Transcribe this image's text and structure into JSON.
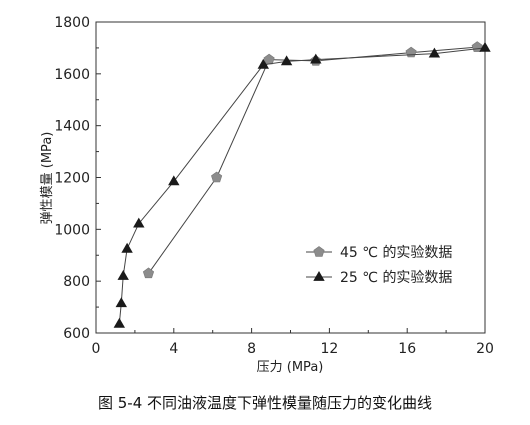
{
  "chart_data": {
    "type": "line",
    "xlabel": "压力 (MPa)",
    "ylabel": "弹性模量 (MPa)",
    "xlim": [
      0,
      20
    ],
    "ylim": [
      600,
      1800
    ],
    "x_ticks": [
      "0",
      "4",
      "8",
      "12",
      "16",
      "20"
    ],
    "y_ticks": [
      "600",
      "800",
      "1000",
      "1200",
      "1400",
      "1600",
      "1800"
    ],
    "grid": false,
    "legend_position": "lower-right",
    "series": [
      {
        "name": "45 ℃ 的实验数据",
        "marker": "pentagon",
        "color": "#8c8c8c",
        "points": [
          [
            2.7,
            830
          ],
          [
            6.2,
            1200
          ],
          [
            8.9,
            1655
          ],
          [
            11.3,
            1650
          ],
          [
            16.2,
            1682
          ],
          [
            19.6,
            1703
          ]
        ]
      },
      {
        "name": "25 ℃ 的实验数据",
        "marker": "triangle",
        "color": "#1a1a1a",
        "points": [
          [
            1.2,
            635
          ],
          [
            1.3,
            715
          ],
          [
            1.4,
            820
          ],
          [
            1.6,
            925
          ],
          [
            2.2,
            1022
          ],
          [
            4.0,
            1185
          ],
          [
            8.6,
            1635
          ],
          [
            9.8,
            1648
          ],
          [
            11.3,
            1655
          ],
          [
            17.4,
            1678
          ],
          [
            20.0,
            1700
          ]
        ]
      }
    ]
  },
  "caption": "图 5-4 不同油液温度下弹性模量随压力的变化曲线"
}
